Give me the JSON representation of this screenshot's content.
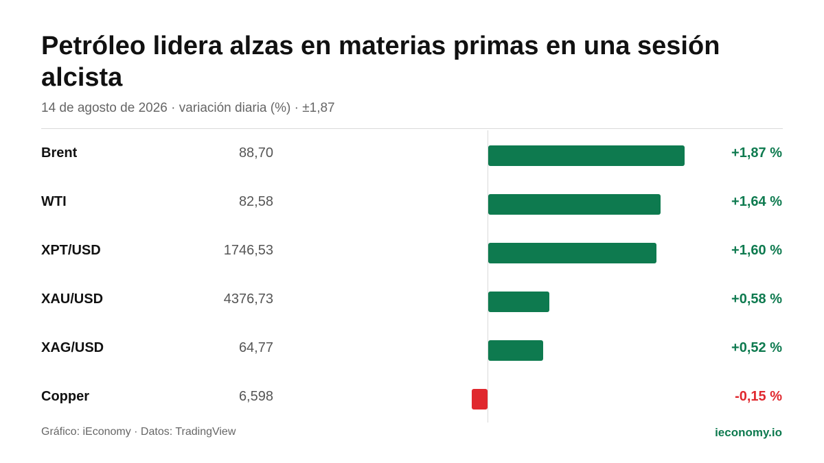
{
  "chart_data": {
    "type": "bar",
    "orientation": "horizontal",
    "title": "Petróleo lidera alzas en materias primas en una sesión alcista",
    "subtitle": "14 de agosto de 2026 · variación diaria (%) · ±1,87",
    "scale_max": 1.87,
    "colors": {
      "positive": "#0e7a4f",
      "negative": "#e0282e"
    },
    "rows": [
      {
        "name": "Brent",
        "price": "88,70",
        "change": 1.87,
        "change_label": "+1,87 %"
      },
      {
        "name": "WTI",
        "price": "82,58",
        "change": 1.64,
        "change_label": "+1,64 %"
      },
      {
        "name": "XPT/USD",
        "price": "1746,53",
        "change": 1.6,
        "change_label": "+1,60 %"
      },
      {
        "name": "XAU/USD",
        "price": "4376,73",
        "change": 0.58,
        "change_label": "+0,58 %"
      },
      {
        "name": "XAG/USD",
        "price": "64,77",
        "change": 0.52,
        "change_label": "+0,52 %"
      },
      {
        "name": "Copper",
        "price": "6,598",
        "change": -0.15,
        "change_label": "-0,15 %"
      }
    ]
  },
  "footer": {
    "source": "Gráfico: iEconomy · Datos: TradingView",
    "brand": "ieconomy.io"
  }
}
